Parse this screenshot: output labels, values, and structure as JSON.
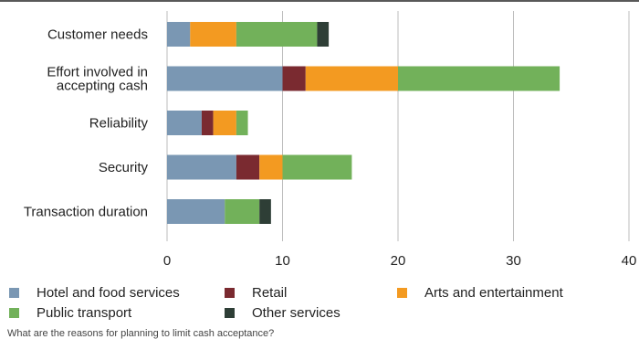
{
  "chart_data": {
    "type": "bar",
    "orientation": "horizontal",
    "stacked": true,
    "categories": [
      "Customer needs",
      "Effort involved in\naccepting cash",
      "Reliability",
      "Security",
      "Transaction duration"
    ],
    "series": [
      {
        "name": "Hotel and food services",
        "color": "#7a97b3",
        "values": [
          2,
          10,
          3,
          6,
          5
        ]
      },
      {
        "name": "Retail",
        "color": "#7a2a30",
        "values": [
          0,
          2,
          1,
          2,
          0
        ]
      },
      {
        "name": "Arts and entertainment",
        "color": "#f39a21",
        "values": [
          4,
          8,
          2,
          2,
          0
        ]
      },
      {
        "name": "Public transport",
        "color": "#72b15a",
        "values": [
          7,
          14,
          1,
          6,
          3
        ]
      },
      {
        "name": "Other services",
        "color": "#2e3e36",
        "values": [
          1,
          0,
          0,
          0,
          1
        ]
      }
    ],
    "xlim": [
      0,
      40
    ],
    "xticks": [
      0,
      10,
      20,
      30,
      40
    ],
    "grid": "vertical",
    "legend": "bottom",
    "caption": "What are the reasons for planning to limit cash acceptance?"
  }
}
